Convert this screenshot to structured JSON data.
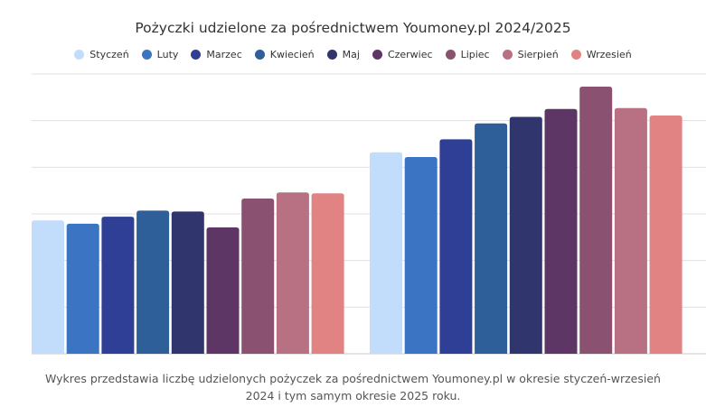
{
  "chart_data": {
    "type": "bar",
    "title": "Pożyczki udzielone za pośrednictwem Youmoney.pl 2024/2025",
    "groups": [
      "2024",
      "2025"
    ],
    "group_labels_printed": false,
    "ylim": [
      0,
      6
    ],
    "y_tick_labels_printed": false,
    "grid": true,
    "legend_position": "top",
    "series": [
      {
        "name": "Styczeń",
        "color": "#c2dcfb",
        "values": [
          2.86,
          4.32
        ]
      },
      {
        "name": "Luty",
        "color": "#3b74c3",
        "values": [
          2.79,
          4.22
        ]
      },
      {
        "name": "Marzec",
        "color": "#2f3f95",
        "values": [
          2.94,
          4.6
        ]
      },
      {
        "name": "Kwiecień",
        "color": "#2e5f98",
        "values": [
          3.07,
          4.94
        ]
      },
      {
        "name": "Maj",
        "color": "#30356e",
        "values": [
          3.05,
          5.08
        ]
      },
      {
        "name": "Czerwiec",
        "color": "#5e3665",
        "values": [
          2.71,
          5.25
        ]
      },
      {
        "name": "Lipiec",
        "color": "#8a5170",
        "values": [
          3.33,
          5.73
        ]
      },
      {
        "name": "Sierpień",
        "color": "#b87083",
        "values": [
          3.46,
          5.27
        ]
      },
      {
        "name": "Wrzesień",
        "color": "#e18283",
        "values": [
          3.44,
          5.11
        ]
      }
    ]
  },
  "caption": {
    "line1": "Wykres przedstawia liczbę udzielonych pożyczek za pośrednictwem Youmoney.pl w okresie styczeń-wrzesień",
    "line2": "2024 i tym samym okresie 2025 roku."
  }
}
